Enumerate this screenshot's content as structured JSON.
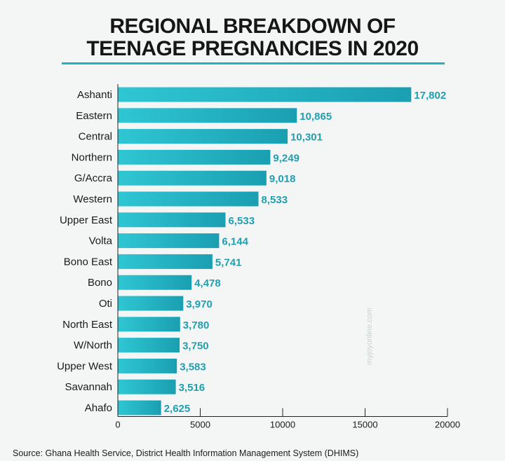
{
  "page": {
    "title_line1": "REGIONAL BREAKDOWN OF",
    "title_line2": "TEENAGE PREGNANCIES IN 2020",
    "source": "Source: Ghana Health Service, District Health Information Management  System (DHIMS)",
    "watermark": "myjoyonline.com"
  },
  "colors": {
    "bar_light": "#2fc6d3",
    "bar_dark": "#1a9fb1",
    "value_text": "#1f9fb1",
    "underline": "#1fb3c3"
  },
  "chart_data": {
    "type": "bar",
    "orientation": "horizontal",
    "title": "REGIONAL BREAKDOWN OF TEENAGE PREGNANCIES IN 2020",
    "xlabel": "",
    "ylabel": "",
    "xlim": [
      0,
      20000
    ],
    "x_ticks": [
      0,
      5000,
      10000,
      15000,
      20000
    ],
    "x_tick_labels": [
      "0",
      "5000",
      "10000",
      "15000",
      "20000"
    ],
    "grid": false,
    "categories": [
      "Ashanti",
      "Eastern",
      "Central",
      "Northern",
      "G/Accra",
      "Western",
      "Upper East",
      "Volta",
      "Bono East",
      "Bono",
      "Oti",
      "North East",
      "W/North",
      "Upper West",
      "Savannah",
      "Ahafo"
    ],
    "values": [
      17802,
      10865,
      10301,
      9249,
      9018,
      8533,
      6533,
      6144,
      5741,
      4478,
      3970,
      3780,
      3750,
      3583,
      3516,
      2625
    ],
    "value_labels": [
      "17,802",
      "10,865",
      "10,301",
      "9,249",
      "9,018",
      "8,533",
      "6,533",
      "6,144",
      "5,741",
      "4,478",
      "3,970",
      "3,780",
      "3,750",
      "3,583",
      "3,516",
      "2,625"
    ]
  }
}
